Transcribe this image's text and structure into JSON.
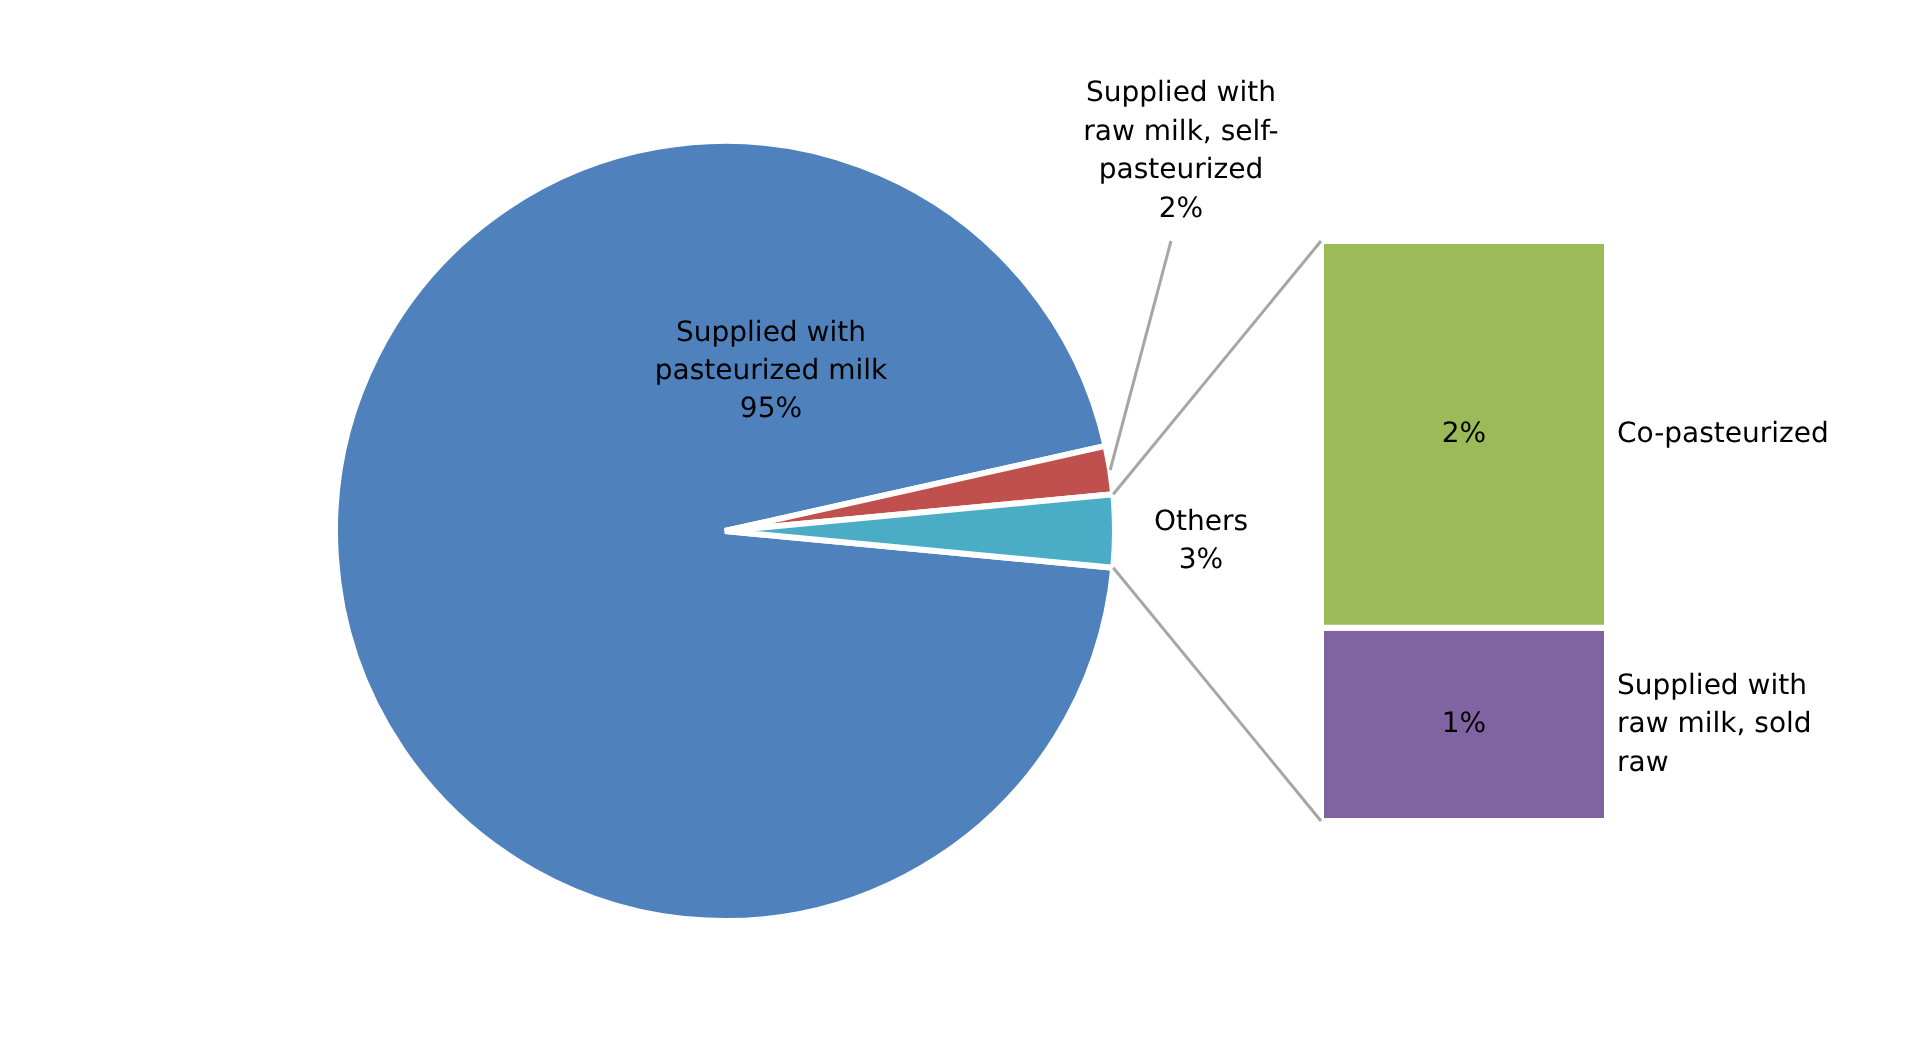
{
  "chart_data": [
    {
      "type": "pie",
      "categories": [
        "Supplied with pasteurized milk",
        "Supplied with raw milk, self-pasteurized",
        "Others"
      ],
      "values": [
        95,
        2,
        3
      ],
      "colors": [
        "#4f81bd",
        "#c0504d",
        "#4bacc6"
      ],
      "value_labels": [
        "95%",
        "2%",
        "3%"
      ]
    },
    {
      "type": "bar",
      "stacked": true,
      "categories": [
        null
      ],
      "series": [
        {
          "name": "Supplied with raw milk, sold raw",
          "color": "#8064a2",
          "values": [
            1
          ],
          "value_labels": [
            "1%"
          ]
        },
        {
          "name": "Co-pasteurized",
          "color": "#9bbb59",
          "values": [
            2
          ],
          "value_labels": [
            "2%"
          ]
        }
      ]
    }
  ]
}
